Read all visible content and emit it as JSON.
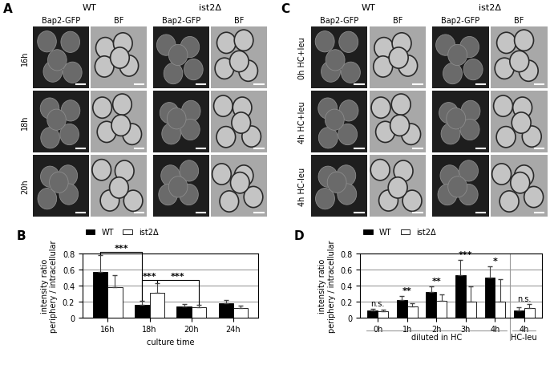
{
  "image_panels": [
    {
      "panel_label": "A",
      "groups": [
        "WT",
        "ist2Δ"
      ],
      "channels": [
        "Bap2-GFP",
        "BF"
      ],
      "rows": [
        "16h",
        "18h",
        "20h"
      ]
    },
    {
      "panel_label": "C",
      "groups": [
        "WT",
        "ist2Δ"
      ],
      "channels": [
        "Bap2-GFP",
        "BF"
      ],
      "rows": [
        "0h HC+leu",
        "4h HC+leu",
        "4h HC-leu"
      ]
    }
  ],
  "chart_data": [
    {
      "type": "bar",
      "panel_label": "B",
      "categories": [
        "16h",
        "18h",
        "20h",
        "24h"
      ],
      "x_label": "culture time",
      "y_label": "intensity ratio\nperiphery / intracellular",
      "series": [
        {
          "name": "WT",
          "color": "#000000",
          "values": [
            0.57,
            0.16,
            0.14,
            0.18
          ],
          "errors": [
            0.21,
            0.05,
            0.03,
            0.04
          ]
        },
        {
          "name": "ist2Δ",
          "color": "#ffffff",
          "values": [
            0.38,
            0.31,
            0.13,
            0.12
          ],
          "errors": [
            0.15,
            0.12,
            0.03,
            0.03
          ]
        }
      ],
      "annotations": [
        {
          "text": "***",
          "from": {
            "category": "16h",
            "series": "WT"
          },
          "to": {
            "category": "18h",
            "series": "WT"
          }
        },
        {
          "text": "***",
          "from": {
            "category": "18h",
            "series": "WT"
          },
          "to": {
            "category": "18h",
            "series": "ist2Δ"
          }
        },
        {
          "text": "***",
          "from": {
            "category": "18h",
            "series": "ist2Δ"
          },
          "to": {
            "category": "20h",
            "series": "ist2Δ"
          }
        }
      ],
      "ylim": [
        0,
        0.8
      ],
      "yticks": [
        0,
        0.2,
        0.4,
        0.6,
        0.8
      ],
      "grid": true,
      "legend": "above"
    },
    {
      "type": "bar",
      "panel_label": "D",
      "categories": [
        "0h",
        "1h",
        "2h",
        "3h",
        "4h",
        "4h"
      ],
      "category_groups": [
        "diluted in HC",
        "diluted in HC",
        "diluted in HC",
        "diluted in HC",
        "diluted in HC",
        "HC-leu"
      ],
      "y_label": "intensity ratio\nperiphery / intracellular",
      "series": [
        {
          "name": "WT",
          "color": "#000000",
          "values": [
            0.09,
            0.22,
            0.32,
            0.53,
            0.5,
            0.09
          ],
          "errors": [
            0.02,
            0.05,
            0.07,
            0.19,
            0.14,
            0.04
          ]
        },
        {
          "name": "ist2Δ",
          "color": "#ffffff",
          "values": [
            0.08,
            0.14,
            0.21,
            0.2,
            0.2,
            0.12
          ],
          "errors": [
            0.02,
            0.04,
            0.08,
            0.19,
            0.28,
            0.05
          ]
        }
      ],
      "significance": [
        "n.s.",
        "**",
        "**",
        "***",
        "*",
        "n.s."
      ],
      "ylim": [
        0,
        0.8
      ],
      "yticks": [
        0,
        0.2,
        0.4,
        0.6,
        0.8
      ],
      "grid": true,
      "legend": "above"
    }
  ]
}
